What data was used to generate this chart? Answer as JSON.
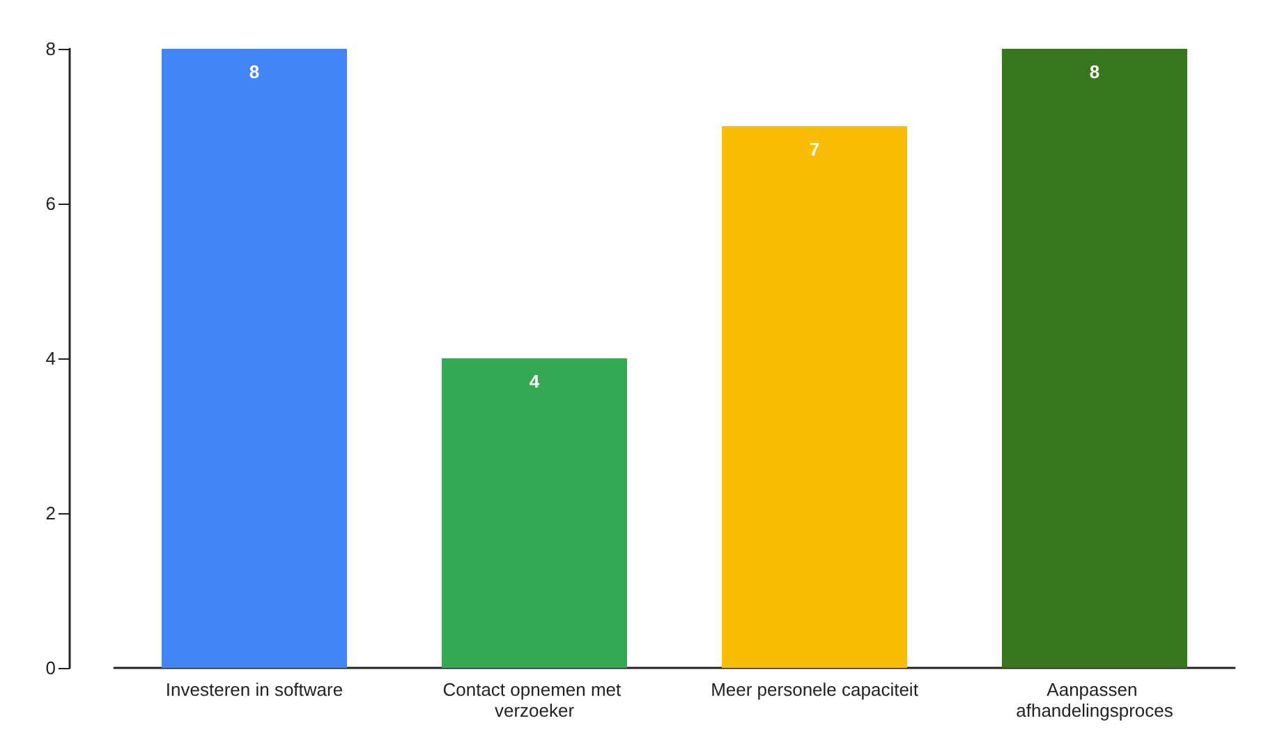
{
  "chart_data": {
    "type": "bar",
    "categories": [
      "Investeren in software",
      "Contact opnemen met verzoeker",
      "Meer personele capaciteit",
      "Aanpassen afhandelingsproces"
    ],
    "values": [
      8,
      4,
      7,
      8
    ],
    "colors": [
      "#4285f4",
      "#34a853",
      "#fbbc04",
      "#38761d"
    ],
    "ylim": [
      0,
      8
    ],
    "yticks": [
      0,
      2,
      4,
      6,
      8
    ],
    "grid": false,
    "data_labels": true
  }
}
